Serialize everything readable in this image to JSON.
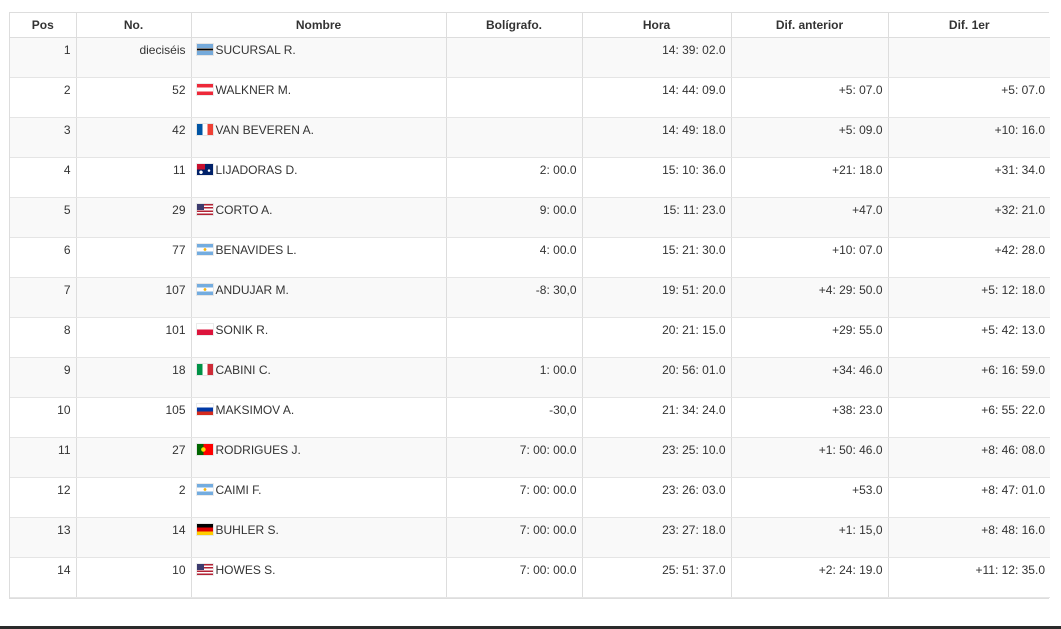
{
  "table": {
    "headers": {
      "pos": "Pos",
      "no": "No.",
      "name": "Nombre",
      "pen": "Bolígrafo.",
      "time": "Hora",
      "diff_prev": "Dif. anterior",
      "diff_first": "Dif. 1er"
    },
    "rows": [
      {
        "pos": "1",
        "no": "dieciséis",
        "flag": "BW",
        "name": "SUCURSAL R.",
        "pen": "",
        "time": "14: 39: 02.0",
        "diff_prev": "",
        "diff_first": ""
      },
      {
        "pos": "2",
        "no": "52",
        "flag": "AT",
        "name": "WALKNER M.",
        "pen": "",
        "time": "14: 44: 09.0",
        "diff_prev": "+5: 07.0",
        "diff_first": "+5: 07.0"
      },
      {
        "pos": "3",
        "no": "42",
        "flag": "FR",
        "name": "VAN BEVEREN A.",
        "pen": "",
        "time": "14: 49: 18.0",
        "diff_prev": "+5: 09.0",
        "diff_first": "+10: 16.0"
      },
      {
        "pos": "4",
        "no": "11",
        "flag": "AU",
        "name": "LIJADORAS D.",
        "pen": "2: 00.0",
        "time": "15: 10: 36.0",
        "diff_prev": "+21: 18.0",
        "diff_first": "+31: 34.0"
      },
      {
        "pos": "5",
        "no": "29",
        "flag": "US",
        "name": "CORTO A.",
        "pen": "9: 00.0",
        "time": "15: 11: 23.0",
        "diff_prev": "+47.0",
        "diff_first": "+32: 21.0"
      },
      {
        "pos": "6",
        "no": "77",
        "flag": "AR",
        "name": "BENAVIDES L.",
        "pen": "4: 00.0",
        "time": "15: 21: 30.0",
        "diff_prev": "+10: 07.0",
        "diff_first": "+42: 28.0"
      },
      {
        "pos": "7",
        "no": "107",
        "flag": "AR",
        "name": "ANDUJAR M.",
        "pen": "-8: 30,0",
        "time": "19: 51: 20.0",
        "diff_prev": "+4: 29: 50.0",
        "diff_first": "+5: 12: 18.0"
      },
      {
        "pos": "8",
        "no": "101",
        "flag": "PL",
        "name": "SONIK R.",
        "pen": "",
        "time": "20: 21: 15.0",
        "diff_prev": "+29: 55.0",
        "diff_first": "+5: 42: 13.0"
      },
      {
        "pos": "9",
        "no": "18",
        "flag": "IT",
        "name": "CABINI C.",
        "pen": "1: 00.0",
        "time": "20: 56: 01.0",
        "diff_prev": "+34: 46.0",
        "diff_first": "+6: 16: 59.0"
      },
      {
        "pos": "10",
        "no": "105",
        "flag": "RU",
        "name": "MAKSIMOV A.",
        "pen": "-30,0",
        "time": "21: 34: 24.0",
        "diff_prev": "+38: 23.0",
        "diff_first": "+6: 55: 22.0"
      },
      {
        "pos": "11",
        "no": "27",
        "flag": "PT",
        "name": "RODRIGUES J.",
        "pen": "7: 00: 00.0",
        "time": "23: 25: 10.0",
        "diff_prev": "+1: 50: 46.0",
        "diff_first": "+8: 46: 08.0"
      },
      {
        "pos": "12",
        "no": "2",
        "flag": "AR",
        "name": "CAIMI F.",
        "pen": "7: 00: 00.0",
        "time": "23: 26: 03.0",
        "diff_prev": "+53.0",
        "diff_first": "+8: 47: 01.0"
      },
      {
        "pos": "13",
        "no": "14",
        "flag": "DE",
        "name": "BUHLER S.",
        "pen": "7: 00: 00.0",
        "time": "23: 27: 18.0",
        "diff_prev": "+1: 15,0",
        "diff_first": "+8: 48: 16.0"
      },
      {
        "pos": "14",
        "no": "10",
        "flag": "US",
        "name": "HOWES S.",
        "pen": "7: 00: 00.0",
        "time": "25: 51: 37.0",
        "diff_prev": "+2: 24: 19.0",
        "diff_first": "+11: 12: 35.0"
      }
    ]
  }
}
